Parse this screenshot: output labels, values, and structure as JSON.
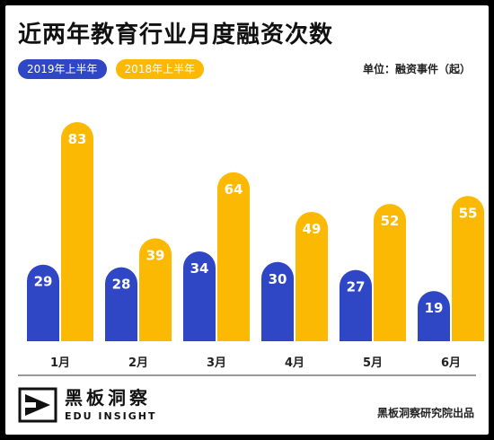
{
  "title": "近两年教育行业月度融资次数",
  "unit": "单位：融资事件（起）",
  "source": "黑板洞察研究院出品",
  "logo": {
    "cn": "黑板洞察",
    "en": "EDU INSIGHT"
  },
  "colors": {
    "series2019": "#2f47c5",
    "series2018": "#fbb904"
  },
  "chart_data": {
    "type": "bar",
    "title": "近两年教育行业月度融资次数",
    "categories": [
      "1月",
      "2月",
      "3月",
      "4月",
      "5月",
      "6月"
    ],
    "series": [
      {
        "name": "2019年上半年",
        "values": [
          29,
          28,
          34,
          30,
          27,
          19
        ]
      },
      {
        "name": "2018年上半年",
        "values": [
          83,
          39,
          64,
          49,
          52,
          55
        ]
      }
    ],
    "ylim": [
      0,
      100
    ],
    "grid": false,
    "legend": "top-left"
  }
}
